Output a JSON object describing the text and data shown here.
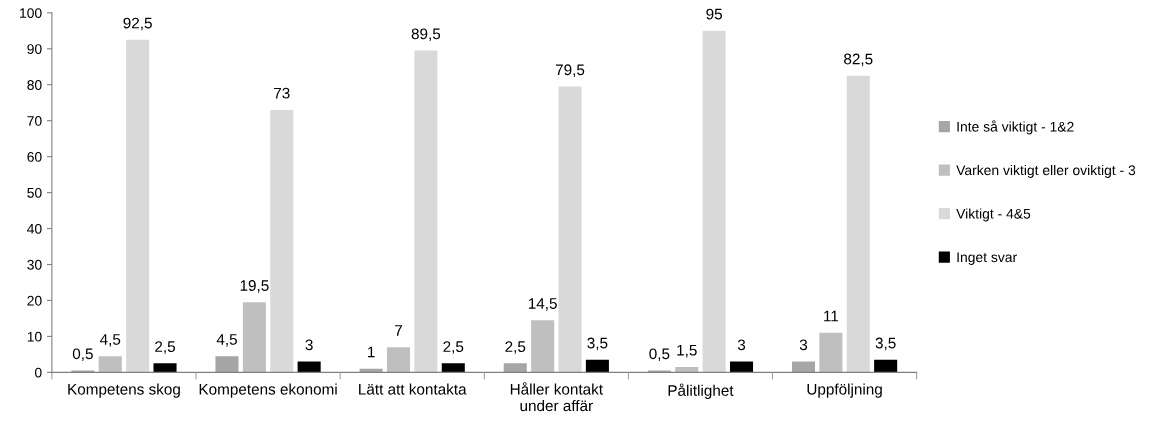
{
  "chart_data": {
    "type": "bar",
    "categories": [
      "Kompetens skog",
      "Kompetens ekonomi",
      "Lätt att kontakta",
      "Håller kontakt  under affär",
      "Pålitlighet",
      "Uppföljning"
    ],
    "series": [
      {
        "name": "Inte så viktigt - 1&2",
        "color": "#a6a6a6",
        "values": [
          0.5,
          4.5,
          1,
          2.5,
          0.5,
          3
        ],
        "value_labels": [
          "0,5",
          "4,5",
          "1",
          "2,5",
          "0,5",
          "3"
        ]
      },
      {
        "name": "Varken viktigt eller oviktigt - 3",
        "color": "#bfbfbf",
        "values": [
          4.5,
          19.5,
          7,
          14.5,
          1.5,
          11
        ],
        "value_labels": [
          "4,5",
          "19,5",
          "7",
          "14,5",
          "1,5",
          "11"
        ]
      },
      {
        "name": "Viktigt - 4&5",
        "color": "#d9d9d9",
        "values": [
          92.5,
          73,
          89.5,
          79.5,
          95,
          82.5
        ],
        "value_labels": [
          "92,5",
          "73",
          "89,5",
          "79,5",
          "95",
          "82,5"
        ]
      },
      {
        "name": "Inget svar",
        "color": "#000000",
        "values": [
          2.5,
          3,
          2.5,
          3.5,
          3,
          3.5
        ],
        "value_labels": [
          "2,5",
          "3",
          "2,5",
          "3,5",
          "3",
          "3,5"
        ]
      }
    ],
    "ylim": [
      0,
      100
    ],
    "yticks": [
      0,
      10,
      20,
      30,
      40,
      50,
      60,
      70,
      80,
      90,
      100
    ],
    "grid": false,
    "legend": "right"
  }
}
